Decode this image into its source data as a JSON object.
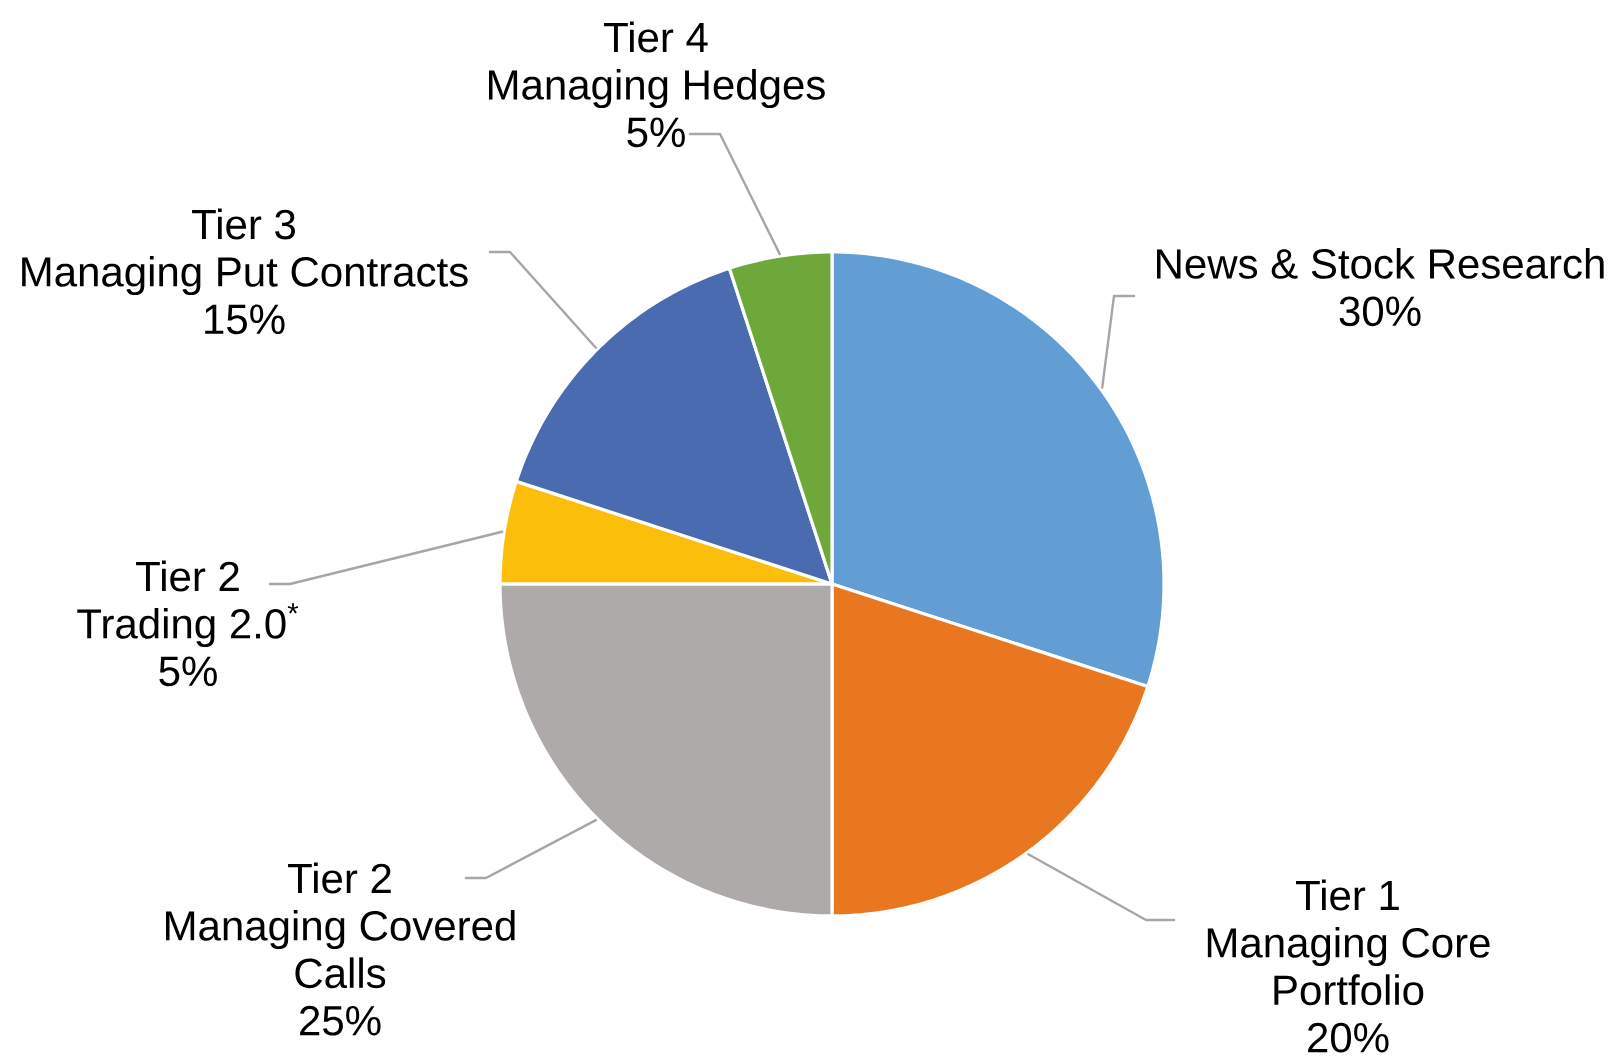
{
  "chart_data": {
    "type": "pie",
    "categories": [
      "News & Stock Research",
      "Tier 1 Managing Core Portfolio",
      "Tier 2 Managing Covered Calls",
      "Tier 2 Trading 2.0$^{*}$",
      "Tier 3 Managing Put Contracts",
      "Tier 4 Managing Hedges"
    ],
    "values": [
      30,
      20,
      25,
      5,
      15,
      5
    ],
    "value_labels": [
      "30%",
      "20%",
      "25%",
      "5%",
      "15%",
      "5%"
    ],
    "colors": [
      "#629dd4",
      "#e8771f",
      "#adaaa9",
      "#fbbf0b",
      "#4a6bb0",
      "#6ea83a"
    ]
  }
}
